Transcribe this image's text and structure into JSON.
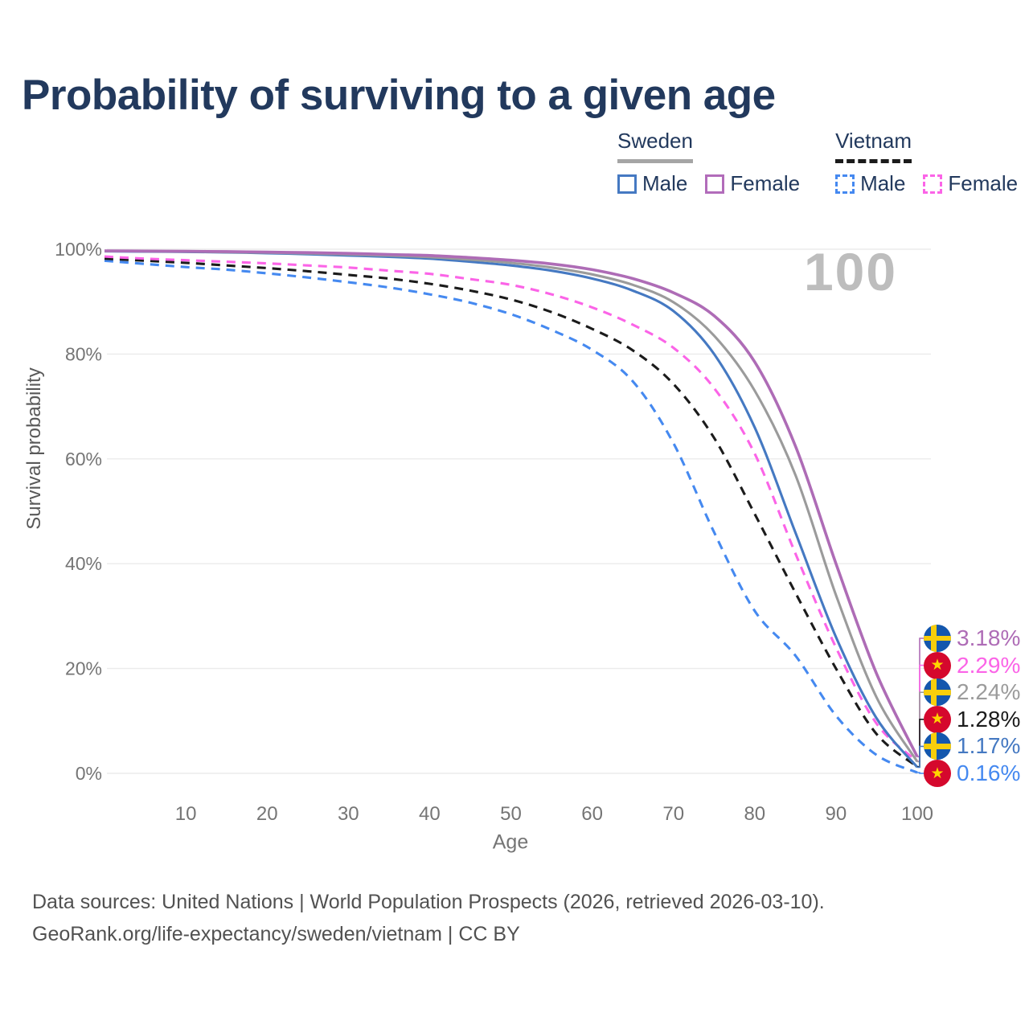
{
  "title": "Probability of surviving to a given age",
  "legend": {
    "groups": [
      {
        "country": "Sweden",
        "line_style": "solid",
        "line_color": "#a5a5a5",
        "items": [
          {
            "label": "Male",
            "color": "#4579c2"
          },
          {
            "label": "Female",
            "color": "#b26cba"
          }
        ]
      },
      {
        "country": "Vietnam",
        "line_style": "dashed",
        "line_color": "#1b1b1b",
        "items": [
          {
            "label": "Male",
            "color": "#4589f0"
          },
          {
            "label": "Female",
            "color": "#fb64e7"
          }
        ]
      }
    ]
  },
  "chart_data": {
    "type": "line",
    "title": "Probability of surviving to a given age",
    "xlabel": "Age",
    "ylabel": "Survival probability",
    "xlim": [
      0,
      102
    ],
    "ylim": [
      0,
      100
    ],
    "x_ticks": [
      10,
      20,
      30,
      40,
      50,
      60,
      70,
      80,
      90,
      100
    ],
    "y_ticks": [
      0,
      20,
      40,
      60,
      80,
      100
    ],
    "y_tick_suffix": "%",
    "grid": "horizontal",
    "legend_position": "top-right",
    "watermark": "100",
    "x": [
      0,
      5,
      10,
      15,
      20,
      25,
      30,
      35,
      40,
      45,
      50,
      55,
      60,
      65,
      70,
      75,
      80,
      85,
      90,
      95,
      100
    ],
    "series": [
      {
        "id": "vietnam-male",
        "name": "Vietnam — Male",
        "country": "Vietnam",
        "sex": "Male",
        "line_style": "dashed",
        "color": "#4589f0",
        "flag": "vietnam",
        "end_value": 0.16,
        "end_label": "0.16%",
        "values": [
          97.8,
          97.2,
          96.6,
          96.1,
          95.4,
          94.6,
          93.7,
          92.7,
          91.4,
          89.8,
          87.6,
          84.6,
          80.8,
          74.8,
          63.0,
          46.0,
          31.0,
          22.5,
          11.0,
          3.5,
          0.16
        ]
      },
      {
        "id": "vietnam-all",
        "name": "Vietnam — Both sexes",
        "country": "Vietnam",
        "sex": "All",
        "line_style": "dashed",
        "color": "#1b1b1b",
        "flag": "vietnam",
        "end_value": 1.28,
        "end_label": "1.28%",
        "values": [
          98.2,
          97.8,
          97.4,
          96.9,
          96.4,
          95.8,
          95.1,
          94.4,
          93.4,
          92.1,
          90.4,
          88.0,
          84.8,
          80.7,
          74.3,
          64.0,
          49.5,
          34.5,
          20.0,
          7.5,
          1.28
        ]
      },
      {
        "id": "vietnam-female",
        "name": "Vietnam — Female",
        "country": "Vietnam",
        "sex": "Female",
        "line_style": "dashed",
        "color": "#fb64e7",
        "flag": "vietnam",
        "end_value": 2.29,
        "end_label": "2.29%",
        "values": [
          98.6,
          98.2,
          97.9,
          97.6,
          97.3,
          96.9,
          96.5,
          95.9,
          95.3,
          94.3,
          93.2,
          91.4,
          88.9,
          85.6,
          81.2,
          73.5,
          61.0,
          42.0,
          24.0,
          9.5,
          2.29
        ]
      },
      {
        "id": "sweden-male",
        "name": "Sweden — Male",
        "country": "Sweden",
        "sex": "Male",
        "line_style": "solid",
        "color": "#4579c2",
        "flag": "sweden",
        "end_value": 1.17,
        "end_label": "1.17%",
        "values": [
          99.6,
          99.55,
          99.5,
          99.4,
          99.25,
          99.05,
          98.8,
          98.55,
          98.2,
          97.6,
          96.9,
          95.9,
          94.4,
          92.1,
          88.2,
          80.0,
          66.0,
          46.0,
          26.0,
          10.5,
          1.17
        ]
      },
      {
        "id": "sweden-all",
        "name": "Sweden — Both sexes",
        "country": "Sweden",
        "sex": "All",
        "line_style": "solid",
        "color": "#9b9b9b",
        "flag": "sweden",
        "end_value": 2.24,
        "end_label": "2.24%",
        "values": [
          99.65,
          99.6,
          99.55,
          99.45,
          99.35,
          99.2,
          99.0,
          98.8,
          98.5,
          98.0,
          97.4,
          96.5,
          95.2,
          93.2,
          89.9,
          83.5,
          73.0,
          57.0,
          34.0,
          14.5,
          2.24
        ]
      },
      {
        "id": "sweden-female",
        "name": "Sweden — Female",
        "country": "Sweden",
        "sex": "Female",
        "line_style": "solid",
        "color": "#ae6cb6",
        "flag": "sweden",
        "end_value": 3.18,
        "end_label": "3.18%",
        "values": [
          99.7,
          99.65,
          99.6,
          99.55,
          99.45,
          99.35,
          99.2,
          99.0,
          98.8,
          98.4,
          97.9,
          97.2,
          96.1,
          94.4,
          91.7,
          87.3,
          78.5,
          62.5,
          40.0,
          19.0,
          3.18
        ]
      }
    ]
  },
  "footer": {
    "line1": "Data sources: United Nations | World Population Prospects (2026, retrieved 2026-03-10).",
    "line2": "GeoRank.org/life-expectancy/sweden/vietnam | CC BY"
  }
}
